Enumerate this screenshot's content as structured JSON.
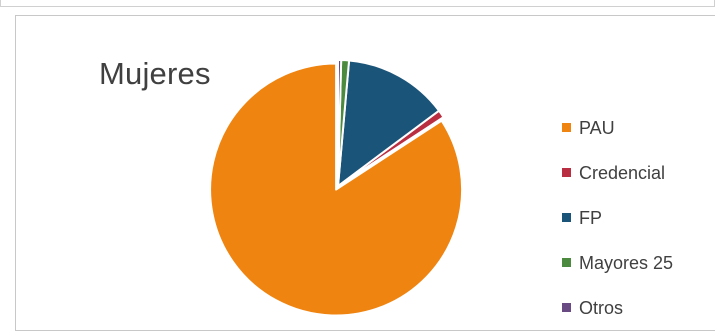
{
  "chart_data": {
    "type": "pie",
    "title": "Mujeres",
    "categories": [
      "PAU",
      "Credencial",
      "FP",
      "Mayores 25",
      "Otros"
    ],
    "values": [
      84.2,
      1.0,
      13.4,
      1.0,
      0.4
    ],
    "colors": [
      "#ef8410",
      "#b92e41",
      "#1b5479",
      "#4c8b3f",
      "#6a4a83"
    ],
    "legend_position": "right",
    "exploded_slice": "PAU"
  }
}
